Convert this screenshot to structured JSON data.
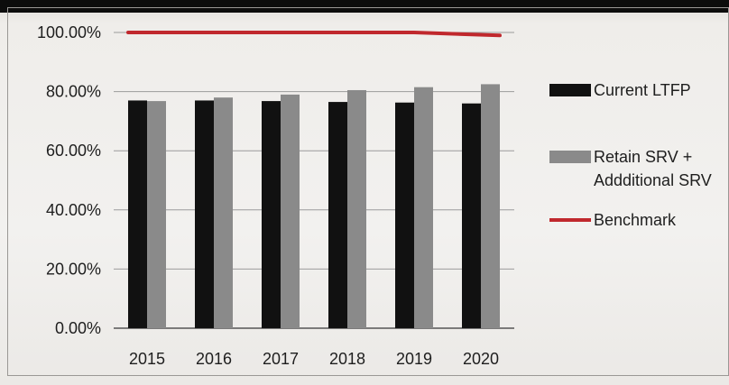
{
  "chart_data": {
    "type": "bar",
    "title": "",
    "xlabel": "",
    "ylabel": "",
    "categories": [
      "2015",
      "2016",
      "2017",
      "2018",
      "2019",
      "2020"
    ],
    "ylim": [
      0,
      100
    ],
    "yticks": [
      "0.00%",
      "20.00%",
      "40.00%",
      "60.00%",
      "80.00%",
      "100.00%"
    ],
    "grid": true,
    "legend_position": "right",
    "series": [
      {
        "name": "Current LTFP",
        "kind": "bar",
        "color": "#111111",
        "values": [
          77,
          77,
          76.8,
          76.5,
          76.3,
          76
        ]
      },
      {
        "name": "Retain SRV + Addditional SRV",
        "kind": "bar",
        "color": "#8a8a8a",
        "values": [
          76.8,
          78,
          79,
          80.5,
          81.5,
          82.5
        ]
      },
      {
        "name": "Benchmark",
        "kind": "line",
        "color": "#c0282d",
        "values": [
          100,
          100,
          100,
          100,
          100,
          99
        ]
      }
    ]
  }
}
